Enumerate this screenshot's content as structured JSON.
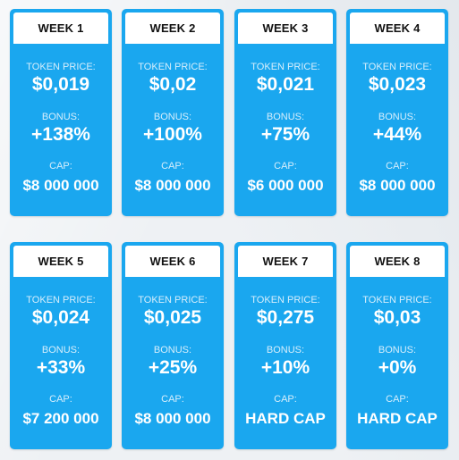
{
  "weeks": [
    {
      "title": "WEEK 1",
      "price_label": "TOKEN PRICE:",
      "price": "$0,019",
      "bonus_label": "BONUS:",
      "bonus": "+138%",
      "cap_label": "CAP:",
      "cap": "$8 000 000"
    },
    {
      "title": "WEEK 2",
      "price_label": "TOKEN PRICE:",
      "price": "$0,02",
      "bonus_label": "BONUS:",
      "bonus": "+100%",
      "cap_label": "CAP:",
      "cap": "$8 000 000"
    },
    {
      "title": "WEEK 3",
      "price_label": "TOKEN PRICE:",
      "price": "$0,021",
      "bonus_label": "BONUS:",
      "bonus": "+75%",
      "cap_label": "CAP:",
      "cap": "$6 000 000"
    },
    {
      "title": "WEEK 4",
      "price_label": "TOKEN PRICE:",
      "price": "$0,023",
      "bonus_label": "BONUS:",
      "bonus": "+44%",
      "cap_label": "CAP:",
      "cap": "$8 000 000"
    },
    {
      "title": "WEEK 5",
      "price_label": "TOKEN PRICE:",
      "price": "$0,024",
      "bonus_label": "BONUS:",
      "bonus": "+33%",
      "cap_label": "CAP:",
      "cap": "$7 200 000"
    },
    {
      "title": "WEEK 6",
      "price_label": "TOKEN PRICE:",
      "price": "$0,025",
      "bonus_label": "BONUS:",
      "bonus": "+25%",
      "cap_label": "CAP:",
      "cap": "$8 000 000"
    },
    {
      "title": "WEEK 7",
      "price_label": "TOKEN PRICE:",
      "price": "$0,275",
      "bonus_label": "BONUS:",
      "bonus": "+10%",
      "cap_label": "CAP:",
      "cap": "HARD CAP"
    },
    {
      "title": "WEEK 8",
      "price_label": "TOKEN PRICE:",
      "price": "$0,03",
      "bonus_label": "BONUS:",
      "bonus": "+0%",
      "cap_label": "CAP:",
      "cap": "HARD CAP"
    }
  ],
  "colors": {
    "card_background": "#1aa7ef",
    "header_background": "#ffffff",
    "header_text": "#111111",
    "value_text": "#ffffff",
    "label_text": "#d6eefc"
  }
}
